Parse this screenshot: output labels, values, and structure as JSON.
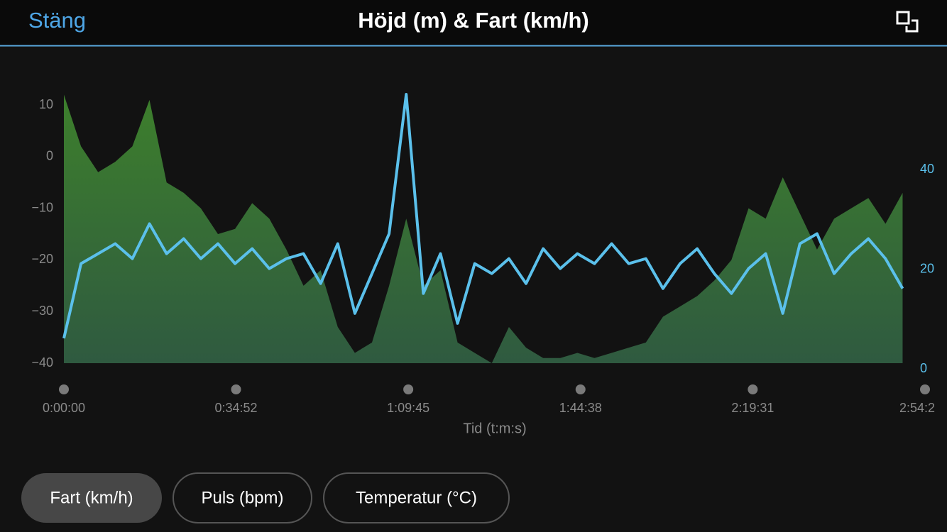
{
  "header": {
    "close": "Stäng",
    "title": "Höjd (m) & Fart (km/h)"
  },
  "chart_data": {
    "type": "line",
    "x": [
      0,
      208,
      416,
      624,
      832,
      1040,
      1248,
      1456,
      1664,
      1872,
      2080,
      2288,
      2496,
      2704,
      2912,
      3120,
      3328,
      3536,
      3744,
      3952,
      4160,
      4368,
      4576,
      4784,
      4992,
      5200,
      5408,
      5616,
      5824,
      6032,
      6240,
      6448,
      6656,
      6864,
      7072,
      7280,
      7488,
      7696,
      7904,
      8112,
      8320,
      8528,
      8736,
      8944,
      9152,
      9360,
      9568,
      9776,
      9984,
      10192
    ],
    "series": [
      {
        "type": "area",
        "color": "#3d7f2c",
        "values": [
          12,
          2,
          -3,
          -1,
          2,
          11,
          -5,
          -7,
          -10,
          -15,
          -14,
          -9,
          -12,
          -18,
          -25,
          -22,
          -33,
          -38,
          -36,
          -25,
          -12,
          -25,
          -22,
          -36,
          -38,
          -40,
          -33,
          -37,
          -39,
          -39,
          -38,
          -39,
          -38,
          -37,
          -36,
          -31,
          -29,
          -27,
          -24,
          -20,
          -10,
          -12,
          -4,
          -11,
          -18,
          -12,
          -10,
          -8,
          -13,
          -7
        ]
      },
      {
        "type": "line",
        "axis": "y2",
        "color": "#5bc0eb",
        "values": [
          5,
          20,
          22,
          24,
          21,
          28,
          22,
          25,
          21,
          24,
          20,
          23,
          19,
          21,
          22,
          16,
          24,
          10,
          18,
          26,
          54,
          14,
          22,
          8,
          20,
          18,
          21,
          16,
          23,
          19,
          22,
          20,
          24,
          20,
          21,
          15,
          20,
          23,
          18,
          14,
          19,
          22,
          10,
          24,
          26,
          18,
          22,
          25,
          21,
          15
        ]
      }
    ],
    "xlim": [
      0,
      10464
    ],
    "xticks": [
      {
        "value": 0,
        "label": "0:00:00"
      },
      {
        "value": 2092,
        "label": "0:34:52"
      },
      {
        "value": 4185,
        "label": "1:09:45"
      },
      {
        "value": 6278,
        "label": "1:44:38"
      },
      {
        "value": 8371,
        "label": "2:19:31"
      },
      {
        "value": 10464,
        "label": "2:54:2"
      }
    ],
    "xlabel": "Tid (t:m:s)",
    "ylim": [
      -40,
      14
    ],
    "yticks": [
      {
        "value": -40,
        "label": "−40"
      },
      {
        "value": -30,
        "label": "−30"
      },
      {
        "value": -20,
        "label": "−20"
      },
      {
        "value": -10,
        "label": "−10"
      },
      0,
      10
    ],
    "y2lim": [
      0,
      56
    ],
    "y2ticks": [
      0,
      20,
      40
    ]
  },
  "buttons": [
    "Fart (km/h)",
    "Puls (bpm)",
    "Temperatur (°C)"
  ]
}
